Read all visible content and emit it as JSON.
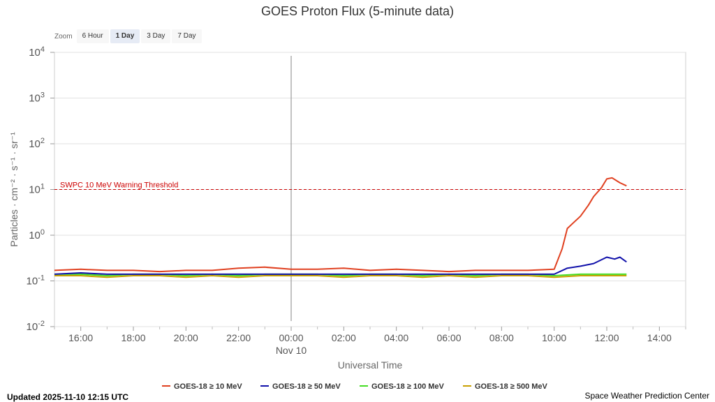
{
  "chart_data": {
    "type": "line",
    "title": "GOES Proton Flux (5-minute data)",
    "xlabel": "Universal Time",
    "ylabel": "Particles · cm⁻² · s⁻¹ · sr⁻¹",
    "yscale": "log",
    "ylim": [
      0.01,
      10000
    ],
    "x_ticks": [
      "16:00",
      "18:00",
      "20:00",
      "22:00",
      "00:00",
      "02:00",
      "04:00",
      "06:00",
      "08:00",
      "10:00",
      "12:00",
      "14:00"
    ],
    "x_tick_hours": [
      16,
      18,
      20,
      22,
      24,
      26,
      28,
      30,
      32,
      34,
      36,
      38
    ],
    "date_label": "Nov 10",
    "xlim_hours": [
      15,
      39
    ],
    "y_ticks": [
      {
        "base": "10",
        "exp": "4",
        "value": 10000
      },
      {
        "base": "10",
        "exp": "3",
        "value": 1000
      },
      {
        "base": "10",
        "exp": "2",
        "value": 100
      },
      {
        "base": "10",
        "exp": "1",
        "value": 10
      },
      {
        "base": "10",
        "exp": "0",
        "value": 1
      },
      {
        "base": "10",
        "exp": "-1",
        "value": 0.1
      },
      {
        "base": "10",
        "exp": "-2",
        "value": 0.01
      }
    ],
    "threshold": {
      "label": "SWPC 10 MeV Warning Threshold",
      "value": 10,
      "color": "#cc0000"
    },
    "marker_hour": 24,
    "grid": true,
    "legend_position": "bottom",
    "series": [
      {
        "name": "GOES-18 ≥ 10 MeV",
        "color": "#e04020",
        "x": [
          15,
          16,
          17,
          18,
          19,
          20,
          21,
          22,
          23,
          24,
          25,
          26,
          27,
          28,
          29,
          30,
          31,
          32,
          33,
          34,
          34.3,
          34.5,
          34.7,
          35,
          35.3,
          35.5,
          35.8,
          36,
          36.2,
          36.5,
          36.75
        ],
        "y": [
          0.17,
          0.18,
          0.17,
          0.17,
          0.16,
          0.17,
          0.17,
          0.19,
          0.2,
          0.18,
          0.18,
          0.19,
          0.17,
          0.18,
          0.17,
          0.16,
          0.17,
          0.17,
          0.17,
          0.18,
          0.5,
          1.4,
          1.8,
          2.6,
          4.5,
          7,
          11,
          17,
          18,
          14,
          12
        ]
      },
      {
        "name": "GOES-18 ≥ 50 MeV",
        "color": "#1010aa",
        "x": [
          15,
          16,
          17,
          18,
          19,
          20,
          21,
          22,
          23,
          24,
          25,
          26,
          27,
          28,
          29,
          30,
          31,
          32,
          33,
          34,
          34.5,
          35,
          35.5,
          36,
          36.3,
          36.5,
          36.75
        ],
        "y": [
          0.14,
          0.15,
          0.14,
          0.14,
          0.14,
          0.14,
          0.14,
          0.14,
          0.14,
          0.14,
          0.14,
          0.14,
          0.14,
          0.14,
          0.14,
          0.14,
          0.14,
          0.14,
          0.14,
          0.14,
          0.19,
          0.21,
          0.24,
          0.33,
          0.3,
          0.33,
          0.26
        ]
      },
      {
        "name": "GOES-18 ≥ 100 MeV",
        "color": "#44dd22",
        "x": [
          15,
          16,
          17,
          18,
          19,
          20,
          21,
          22,
          23,
          24,
          25,
          26,
          27,
          28,
          29,
          30,
          31,
          32,
          33,
          34,
          35,
          36,
          36.75
        ],
        "y": [
          0.14,
          0.14,
          0.13,
          0.14,
          0.14,
          0.13,
          0.14,
          0.13,
          0.14,
          0.14,
          0.14,
          0.13,
          0.14,
          0.14,
          0.13,
          0.14,
          0.13,
          0.14,
          0.14,
          0.13,
          0.14,
          0.14,
          0.14
        ]
      },
      {
        "name": "GOES-18 ≥ 500 MeV",
        "color": "#c8a000",
        "x": [
          15,
          16,
          17,
          18,
          19,
          20,
          21,
          22,
          23,
          24,
          25,
          26,
          27,
          28,
          29,
          30,
          31,
          32,
          33,
          34,
          35,
          36,
          36.75
        ],
        "y": [
          0.13,
          0.13,
          0.12,
          0.13,
          0.13,
          0.12,
          0.13,
          0.12,
          0.13,
          0.13,
          0.13,
          0.12,
          0.13,
          0.13,
          0.12,
          0.13,
          0.12,
          0.13,
          0.13,
          0.12,
          0.13,
          0.13,
          0.13
        ]
      }
    ]
  },
  "zoom": {
    "label": "Zoom",
    "buttons": [
      "6 Hour",
      "1 Day",
      "3 Day",
      "7 Day"
    ],
    "active": 1
  },
  "footer": {
    "updated": "Updated 2025-11-10 12:15 UTC",
    "credit": "Space Weather Prediction Center"
  }
}
